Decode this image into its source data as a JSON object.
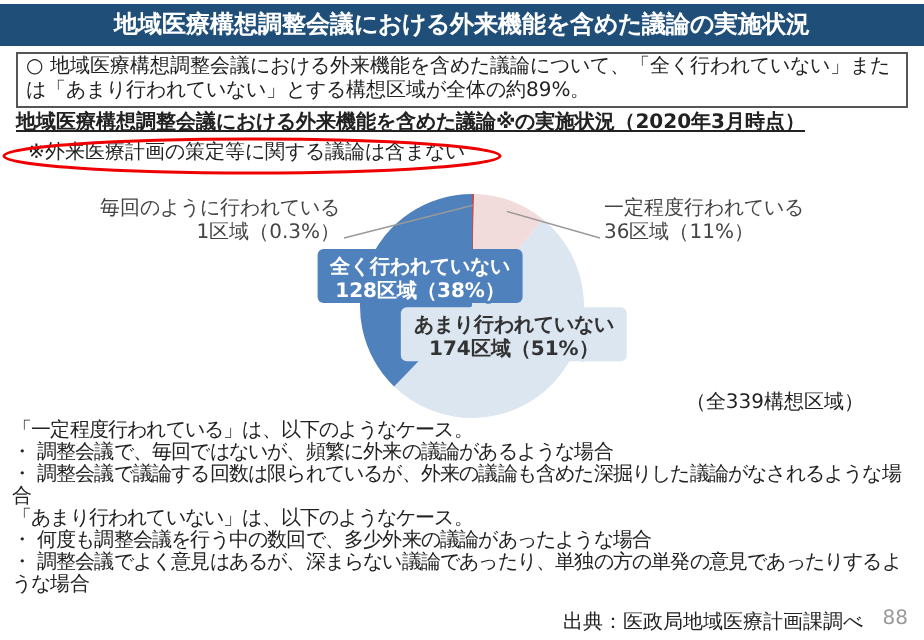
{
  "chart_data": {
    "type": "pie",
    "title": "地域医療構想調整会議における外来機能を含めた議論の実施状況",
    "subtitle": "地域医療構想調整会議における外来機能を含めた議論※の実施状況（2020年3月時点）",
    "categories": [
      "毎回のように行われている",
      "一定程度行われている",
      "あまり行われていない",
      "全く行われていない"
    ],
    "values": [
      1,
      36,
      174,
      128
    ],
    "value_labels": [
      "1区域（0.3%）",
      "36区域（11%）",
      "174区域（51%）",
      "128区域（38%）"
    ],
    "colors": [
      "#c0504d",
      "#f2dcdb",
      "#dce6f1",
      "#4f81bd"
    ],
    "legend": false,
    "annotations": [
      "○ 地域医療構想調整会議における外来機能を含めた議論について、「全く行われていない」または「あまり行われていない」とする構想区域が全体の約89%。",
      "※外来医療計画の策定等に関する議論は含まない",
      "（全339構想区域）",
      "「一定程度行われている」は、以下のようなケース。",
      "・ 調整会議で、毎回ではないが、頻繁に外来の議論があるような場合",
      "・ 調整会議で議論する回数は限られているが、外来の議論も含めた深掘りした議論がなされるような場合",
      "「あまり行われていない」は、以下のようなケース。",
      "・ 何度も調整会議を行う中の数回で、多少外来の議論があったような場合",
      "・ 調整会議でよく意見はあるが、深まらない議論であったり、単独の方の単発の意見であったりするような場合",
      "出典：医政局地域医療計画課調べ",
      "88"
    ]
  }
}
